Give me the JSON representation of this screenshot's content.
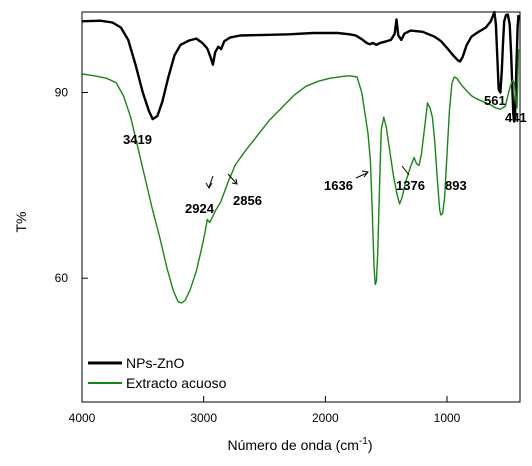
{
  "chart_data": {
    "type": "line",
    "xlabel": "Número de onda (cm",
    "xlabel_sup": "-1",
    "xlabel_end": ")",
    "ylabel": "T%",
    "xlim": [
      4000,
      400
    ],
    "ylim": [
      40,
      103
    ],
    "x_ticks": [
      4000,
      3000,
      2000,
      1000
    ],
    "y_ticks": [
      60,
      90
    ],
    "legend_position": "bottom-left",
    "series": [
      {
        "name": "NPs-ZnO",
        "color": "#000000",
        "points": [
          [
            4000,
            101.5
          ],
          [
            3850,
            101.6
          ],
          [
            3750,
            101.3
          ],
          [
            3680,
            100.5
          ],
          [
            3620,
            98.5
          ],
          [
            3560,
            94.5
          ],
          [
            3500,
            90.0
          ],
          [
            3450,
            87.0
          ],
          [
            3419,
            85.7
          ],
          [
            3380,
            86.2
          ],
          [
            3340,
            88.5
          ],
          [
            3290,
            92.5
          ],
          [
            3240,
            96.0
          ],
          [
            3190,
            97.7
          ],
          [
            3120,
            98.4
          ],
          [
            3060,
            98.7
          ],
          [
            3010,
            98.0
          ],
          [
            2970,
            97.1
          ],
          [
            2940,
            95.5
          ],
          [
            2924,
            94.5
          ],
          [
            2905,
            96.5
          ],
          [
            2880,
            97.4
          ],
          [
            2856,
            97.0
          ],
          [
            2830,
            98.3
          ],
          [
            2780,
            98.9
          ],
          [
            2700,
            99.2
          ],
          [
            2500,
            99.3
          ],
          [
            2300,
            99.4
          ],
          [
            2100,
            99.6
          ],
          [
            1900,
            99.6
          ],
          [
            1800,
            99.4
          ],
          [
            1750,
            99.2
          ],
          [
            1700,
            98.6
          ],
          [
            1660,
            98.0
          ],
          [
            1636,
            97.8
          ],
          [
            1610,
            98.0
          ],
          [
            1580,
            97.7
          ],
          [
            1550,
            98.0
          ],
          [
            1510,
            98.2
          ],
          [
            1460,
            98.5
          ],
          [
            1430,
            99.5
          ],
          [
            1415,
            101.8
          ],
          [
            1400,
            99.2
          ],
          [
            1376,
            98.5
          ],
          [
            1350,
            99.5
          ],
          [
            1300,
            100.0
          ],
          [
            1200,
            99.8
          ],
          [
            1100,
            99.0
          ],
          [
            1050,
            98.3
          ],
          [
            1000,
            97.2
          ],
          [
            950,
            96.0
          ],
          [
            910,
            95.2
          ],
          [
            893,
            95.0
          ],
          [
            870,
            95.8
          ],
          [
            840,
            97.6
          ],
          [
            800,
            99.0
          ],
          [
            740,
            99.8
          ],
          [
            680,
            100.5
          ],
          [
            640,
            101.5
          ],
          [
            610,
            103.0
          ],
          [
            598,
            101.0
          ],
          [
            585,
            95.0
          ],
          [
            575,
            90.5
          ],
          [
            561,
            90.0
          ],
          [
            550,
            93.5
          ],
          [
            540,
            98.0
          ],
          [
            530,
            101.5
          ],
          [
            515,
            102.5
          ],
          [
            500,
            102.6
          ],
          [
            485,
            101.0
          ],
          [
            472,
            96.0
          ],
          [
            462,
            90.0
          ],
          [
            455,
            86.5
          ],
          [
            448,
            85.3
          ],
          [
            441,
            86.0
          ],
          [
            430,
            94.0
          ],
          [
            420,
            100.5
          ],
          [
            412,
            102.5
          ]
        ]
      },
      {
        "name": "Extracto acuoso",
        "color": "#158715",
        "points": [
          [
            4000,
            93.0
          ],
          [
            3900,
            92.7
          ],
          [
            3800,
            92.3
          ],
          [
            3720,
            91.6
          ],
          [
            3660,
            89.5
          ],
          [
            3600,
            86.0
          ],
          [
            3540,
            81.0
          ],
          [
            3480,
            76.0
          ],
          [
            3420,
            71.0
          ],
          [
            3360,
            66.5
          ],
          [
            3300,
            61.5
          ],
          [
            3250,
            58.0
          ],
          [
            3210,
            56.2
          ],
          [
            3180,
            56.0
          ],
          [
            3150,
            56.5
          ],
          [
            3110,
            58.2
          ],
          [
            3060,
            61.2
          ],
          [
            3020,
            64.5
          ],
          [
            2990,
            67.3
          ],
          [
            2970,
            69.5
          ],
          [
            2950,
            69.0
          ],
          [
            2930,
            69.8
          ],
          [
            2900,
            71.0
          ],
          [
            2860,
            72.3
          ],
          [
            2800,
            75.5
          ],
          [
            2740,
            78.3
          ],
          [
            2660,
            80.5
          ],
          [
            2560,
            83.0
          ],
          [
            2460,
            85.5
          ],
          [
            2360,
            87.5
          ],
          [
            2260,
            89.5
          ],
          [
            2160,
            91.0
          ],
          [
            2060,
            91.8
          ],
          [
            1960,
            92.3
          ],
          [
            1860,
            92.6
          ],
          [
            1800,
            92.7
          ],
          [
            1740,
            92.5
          ],
          [
            1700,
            90.0
          ],
          [
            1670,
            86.0
          ],
          [
            1650,
            83.5
          ],
          [
            1630,
            79.0
          ],
          [
            1615,
            71.0
          ],
          [
            1600,
            62.0
          ],
          [
            1590,
            59.0
          ],
          [
            1580,
            59.5
          ],
          [
            1570,
            64.0
          ],
          [
            1560,
            71.0
          ],
          [
            1550,
            78.0
          ],
          [
            1540,
            84.0
          ],
          [
            1520,
            86.0
          ],
          [
            1500,
            84.5
          ],
          [
            1470,
            80.5
          ],
          [
            1440,
            76.5
          ],
          [
            1410,
            73.5
          ],
          [
            1390,
            72.0
          ],
          [
            1370,
            73.0
          ],
          [
            1340,
            75.5
          ],
          [
            1300,
            78.0
          ],
          [
            1270,
            79.5
          ],
          [
            1250,
            78.5
          ],
          [
            1230,
            78.2
          ],
          [
            1210,
            80.0
          ],
          [
            1180,
            85.0
          ],
          [
            1160,
            88.3
          ],
          [
            1140,
            87.5
          ],
          [
            1120,
            86.0
          ],
          [
            1100,
            82.0
          ],
          [
            1080,
            76.0
          ],
          [
            1060,
            71.0
          ],
          [
            1050,
            70.2
          ],
          [
            1035,
            70.5
          ],
          [
            1020,
            73.0
          ],
          [
            1000,
            80.0
          ],
          [
            980,
            87.0
          ],
          [
            960,
            91.5
          ],
          [
            940,
            92.5
          ],
          [
            920,
            92.3
          ],
          [
            880,
            91.2
          ],
          [
            850,
            90.5
          ],
          [
            800,
            89.5
          ],
          [
            760,
            89.0
          ],
          [
            700,
            88.5
          ],
          [
            640,
            88.0
          ],
          [
            600,
            87.5
          ],
          [
            560,
            87.3
          ],
          [
            520,
            87.8
          ],
          [
            500,
            89.5
          ],
          [
            480,
            91.0
          ],
          [
            460,
            92.0
          ],
          [
            445,
            91.5
          ],
          [
            435,
            89.0
          ],
          [
            425,
            87.5
          ],
          [
            418,
            92.0
          ],
          [
            412,
            97.0
          ]
        ]
      }
    ],
    "annotations": [
      "3419",
      "2924",
      "2856",
      "1636",
      "1376",
      "893",
      "561",
      "441"
    ]
  }
}
